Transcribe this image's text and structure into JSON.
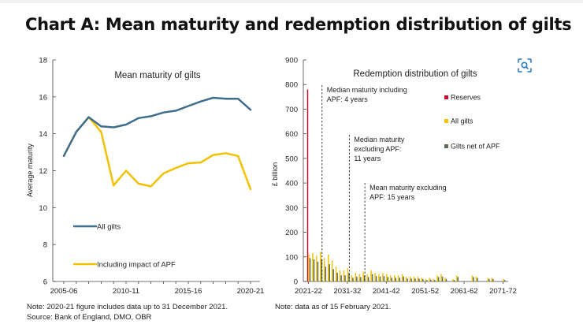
{
  "page": {
    "title": "Chart A: Mean maturity and redemption distribution of gilts"
  },
  "notes": {
    "left_line1": "Note: 2020-21 figure includes data up to 31 December 2021.",
    "left_line2": "Source: Bank of England, DMO, OBR",
    "right": "Note: data as of 15 February 2021."
  },
  "colors": {
    "navy": "#3f6e8c",
    "gold": "#f2c200",
    "red": "#c8102e",
    "olive": "#5f6a5a"
  },
  "icons": {
    "lens": "visual-search-icon"
  },
  "chart_data": [
    {
      "type": "line",
      "title": "Mean maturity of gilts",
      "ylabel": "Average maturity",
      "xlabel": "",
      "ylim": [
        6,
        18
      ],
      "yticks": [
        6,
        8,
        10,
        12,
        14,
        16,
        18
      ],
      "x": [
        "2005-06",
        "2006-07",
        "2007-08",
        "2008-09",
        "2009-10",
        "2010-11",
        "2011-12",
        "2012-13",
        "2013-14",
        "2014-15",
        "2015-16",
        "2016-17",
        "2017-18",
        "2018-19",
        "2019-20",
        "2020-21"
      ],
      "xtick_labels": [
        "2005-06",
        "2010-11",
        "2015-16",
        "2020-21"
      ],
      "series": [
        {
          "name": "All gilts",
          "color": "#3f6e8c",
          "values": [
            12.8,
            14.1,
            14.9,
            14.4,
            14.35,
            14.5,
            14.85,
            14.95,
            15.15,
            15.25,
            15.5,
            15.75,
            15.95,
            15.9,
            15.9,
            15.3
          ]
        },
        {
          "name": "Including impact of APF",
          "color": "#f2c200",
          "values": [
            12.8,
            14.1,
            14.9,
            14.1,
            11.2,
            12.0,
            11.3,
            11.15,
            11.85,
            12.15,
            12.4,
            12.45,
            12.85,
            12.95,
            12.8,
            11.0
          ]
        }
      ]
    },
    {
      "type": "bar",
      "title": "Redemption distribution of gilts",
      "ylabel": "£ billion",
      "xlabel": "",
      "ylim": [
        0,
        900
      ],
      "yticks": [
        0,
        100,
        200,
        300,
        400,
        500,
        600,
        700,
        800,
        900
      ],
      "xtick_labels": [
        "2021-22",
        "2031-32",
        "2041-42",
        "2051-52",
        "2061-62",
        "2071-72"
      ],
      "x_start_year": 2021,
      "x_end_year": 2072,
      "series": [
        {
          "name": "Reserves",
          "color": "#c8102e",
          "values": [
            780,
            0,
            0,
            0,
            0,
            0,
            0,
            0,
            0,
            0,
            0,
            0,
            0,
            0,
            0,
            0,
            0,
            0,
            0,
            0,
            0,
            0,
            0,
            0,
            0,
            0,
            0,
            0,
            0,
            0,
            0,
            0,
            0,
            0,
            0,
            0,
            0,
            0,
            0,
            0,
            0,
            0,
            0,
            0,
            0,
            0,
            0,
            0,
            0,
            0,
            0
          ]
        },
        {
          "name": "All gilts",
          "color": "#f2c200",
          "values": [
            110,
            115,
            105,
            120,
            95,
            110,
            85,
            60,
            45,
            45,
            55,
            25,
            35,
            30,
            40,
            30,
            45,
            35,
            30,
            35,
            30,
            25,
            25,
            25,
            30,
            20,
            20,
            20,
            20,
            15,
            10,
            15,
            10,
            25,
            30,
            15,
            0,
            10,
            25,
            0,
            0,
            0,
            25,
            20,
            0,
            0,
            15,
            15,
            0,
            0,
            10
          ]
        },
        {
          "name": "Gilts net of APF",
          "color": "#5f6a5a",
          "values": [
            95,
            90,
            80,
            90,
            60,
            70,
            50,
            35,
            25,
            25,
            35,
            15,
            20,
            18,
            25,
            18,
            30,
            22,
            20,
            22,
            18,
            15,
            15,
            15,
            20,
            12,
            12,
            12,
            12,
            10,
            6,
            8,
            6,
            18,
            20,
            10,
            0,
            6,
            18,
            0,
            0,
            0,
            18,
            14,
            0,
            0,
            10,
            10,
            0,
            0,
            6
          ]
        }
      ],
      "annotations": [
        {
          "text": [
            "Median maturity including",
            "APF: 4 years"
          ],
          "year": 2025
        },
        {
          "text": [
            "Median maturity",
            "excluding APF:",
            "11 years"
          ],
          "year": 2032
        },
        {
          "text": [
            "Mean maturity excluding",
            "APF: 15 years"
          ],
          "year": 2036
        }
      ]
    }
  ]
}
